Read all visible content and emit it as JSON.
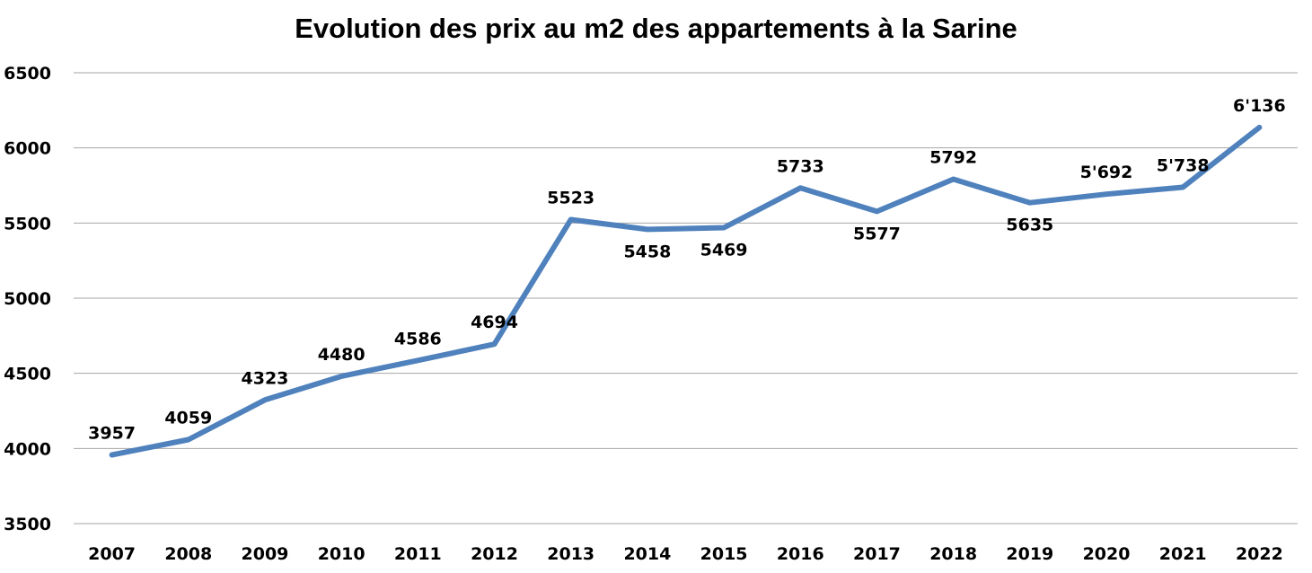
{
  "chart_data": {
    "type": "line",
    "title": "Evolution des prix au m2 des appartements à la Sarine",
    "xlabel": "",
    "ylabel": "",
    "ylim": [
      3500,
      6500
    ],
    "yticks": [
      "3500",
      "4000",
      "4500",
      "5000",
      "5500",
      "6000",
      "6500"
    ],
    "grid": true,
    "legend": "none",
    "line_color": "#4F81BD",
    "categories": [
      "2007",
      "2008",
      "2009",
      "2010",
      "2011",
      "2012",
      "2013",
      "2014",
      "2015",
      "2016",
      "2017",
      "2018",
      "2019",
      "2020",
      "2021",
      "2022"
    ],
    "series": [
      {
        "values": [
          3957,
          4059,
          4323,
          4480,
          4586,
          4694,
          5523,
          5458,
          5469,
          5733,
          5577,
          5792,
          5635,
          5692,
          5738,
          6136
        ],
        "labels": [
          "3957",
          "4059",
          "4323",
          "4480",
          "4586",
          "4694",
          "5523",
          "5458",
          "5469",
          "5733",
          "5577",
          "5792",
          "5635",
          "5'692",
          "5'738",
          "6'136"
        ],
        "label_position": [
          "above",
          "above",
          "above",
          "above",
          "above",
          "above",
          "above",
          "below",
          "below",
          "above",
          "below",
          "above",
          "below",
          "above",
          "above",
          "above"
        ]
      }
    ]
  }
}
